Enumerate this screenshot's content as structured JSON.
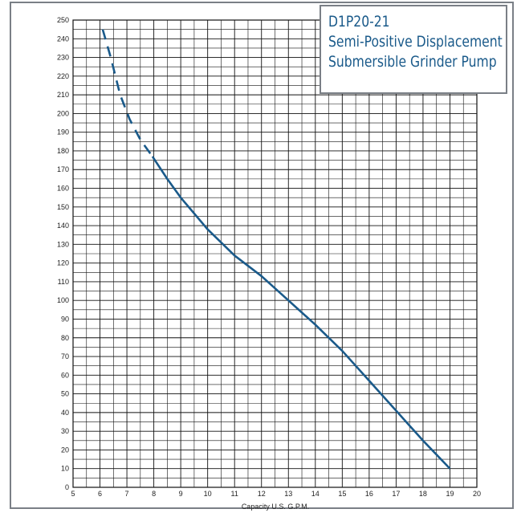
{
  "chart_data": {
    "type": "line",
    "title": "D1P20-21",
    "subtitle_lines": [
      "Semi-Positive Displacement",
      "Submersible Grinder Pump"
    ],
    "xlabel": "Capacity U.S. G.P.M.",
    "ylabel": "",
    "xlim": [
      5,
      20
    ],
    "ylim": [
      0,
      250
    ],
    "x_ticks": [
      "5",
      "6",
      "7",
      "8",
      "9",
      "10",
      "11",
      "12",
      "13",
      "14",
      "15",
      "16",
      "17",
      "18",
      "19",
      "20"
    ],
    "y_ticks": [
      "0",
      "10",
      "20",
      "30",
      "40",
      "50",
      "60",
      "70",
      "80",
      "90",
      "100",
      "110",
      "120",
      "130",
      "140",
      "150",
      "160",
      "170",
      "180",
      "190",
      "200",
      "210",
      "220",
      "230",
      "240",
      "250"
    ],
    "grid": true,
    "series": [
      {
        "style": "dashed",
        "color": "#1a5a8a",
        "x": [
          6.1,
          6.4,
          6.75,
          7.1,
          7.5,
          7.95
        ],
        "y": [
          245,
          230,
          210,
          197,
          186,
          177
        ]
      },
      {
        "style": "solid",
        "color": "#1a5a8a",
        "x": [
          7.95,
          8.5,
          9,
          10,
          11,
          12,
          13,
          14,
          15,
          16,
          17,
          18,
          19
        ],
        "y": [
          177,
          165,
          155,
          138,
          124,
          113,
          100,
          87,
          73,
          57,
          41,
          25,
          10
        ]
      }
    ]
  }
}
